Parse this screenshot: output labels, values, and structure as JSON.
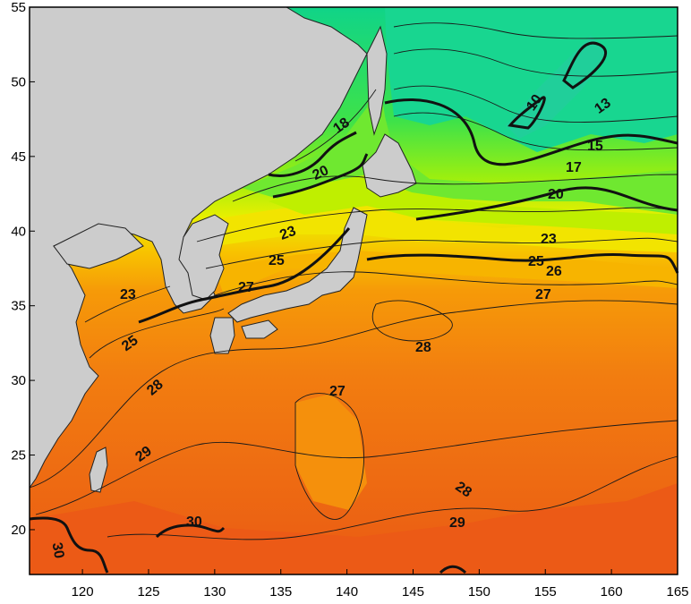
{
  "map": {
    "x_axis": {
      "ticks": [
        "120",
        "125",
        "130",
        "135",
        "140",
        "145",
        "150",
        "155",
        "160",
        "165"
      ]
    },
    "y_axis": {
      "ticks": [
        "55",
        "50",
        "45",
        "40",
        "35",
        "30",
        "25",
        "20"
      ]
    },
    "contour_labels": [
      {
        "id": "c18",
        "text": "18"
      },
      {
        "id": "c20a",
        "text": "20"
      },
      {
        "id": "c23a",
        "text": "23"
      },
      {
        "id": "c25a",
        "text": "25"
      },
      {
        "id": "c27a",
        "text": "27"
      },
      {
        "id": "c23b",
        "text": "23"
      },
      {
        "id": "c25b",
        "text": "25"
      },
      {
        "id": "c28a",
        "text": "28"
      },
      {
        "id": "c29a",
        "text": "29"
      },
      {
        "id": "c30a",
        "text": "30"
      },
      {
        "id": "c30b",
        "text": "30"
      },
      {
        "id": "c10",
        "text": "10"
      },
      {
        "id": "c13",
        "text": "13"
      },
      {
        "id": "c15",
        "text": "15"
      },
      {
        "id": "c17",
        "text": "17"
      },
      {
        "id": "c20b",
        "text": "20"
      },
      {
        "id": "c23c",
        "text": "23"
      },
      {
        "id": "c25c",
        "text": "25"
      },
      {
        "id": "c26",
        "text": "26"
      },
      {
        "id": "c27b",
        "text": "27"
      },
      {
        "id": "c28b",
        "text": "28"
      },
      {
        "id": "c27c",
        "text": "27"
      },
      {
        "id": "c28c",
        "text": "28"
      },
      {
        "id": "c29b",
        "text": "29"
      }
    ],
    "colors": {
      "cold": "#14d67a",
      "cool": "#4fe63a",
      "mild": "#c8f000",
      "warm_yellow": "#f7e600",
      "warm_orange": "#f7a800",
      "hot": "#f27a10",
      "hottest": "#ec5a14",
      "land": "#cccccc"
    }
  }
}
